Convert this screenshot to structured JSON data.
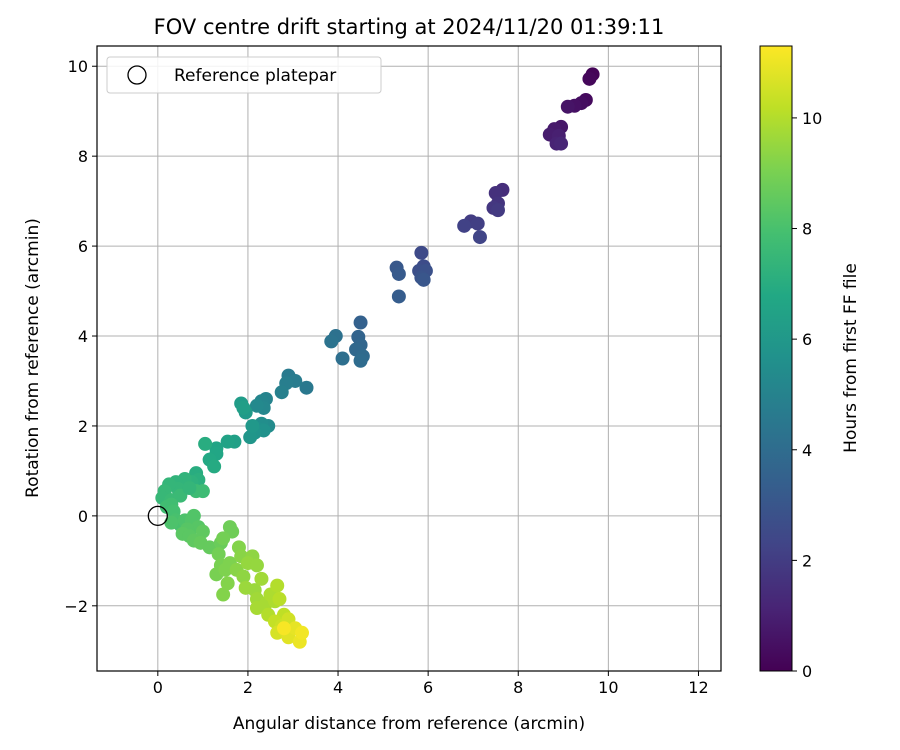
{
  "chart_data": {
    "type": "scatter",
    "title": "FOV centre drift starting at 2024/11/20 01:39:11",
    "xlabel": "Angular distance from reference (arcmin)",
    "ylabel": "Rotation from reference (arcmin)",
    "xlim": [
      -1.35,
      12.5
    ],
    "ylim": [
      -3.45,
      10.45
    ],
    "xticks": [
      0,
      2,
      4,
      6,
      8,
      10,
      12
    ],
    "yticks": [
      -2,
      0,
      2,
      4,
      6,
      8,
      10
    ],
    "grid": true,
    "colormap": "viridis",
    "colorbar": {
      "label": "Hours from first FF file",
      "range": [
        0,
        11.3
      ],
      "ticks": [
        0,
        2,
        4,
        6,
        8,
        10
      ]
    },
    "legend": {
      "position": "top-left",
      "entries": [
        "Reference platepar"
      ]
    },
    "reference_point": {
      "x": 0,
      "y": 0
    },
    "points": [
      [
        9.65,
        9.82,
        0.1
      ],
      [
        9.58,
        9.72,
        0.2
      ],
      [
        9.5,
        9.25,
        0.3
      ],
      [
        9.4,
        9.18,
        0.4
      ],
      [
        9.25,
        9.12,
        0.5
      ],
      [
        9.1,
        9.1,
        0.6
      ],
      [
        8.95,
        8.65,
        0.7
      ],
      [
        8.8,
        8.6,
        0.8
      ],
      [
        8.7,
        8.48,
        0.9
      ],
      [
        8.9,
        8.45,
        1.0
      ],
      [
        8.85,
        8.28,
        1.1
      ],
      [
        8.95,
        8.28,
        1.2
      ],
      [
        7.65,
        7.25,
        1.5
      ],
      [
        7.5,
        7.18,
        1.6
      ],
      [
        7.55,
        6.95,
        1.7
      ],
      [
        7.45,
        6.85,
        1.8
      ],
      [
        7.55,
        6.8,
        1.9
      ],
      [
        6.95,
        6.55,
        2.0
      ],
      [
        7.1,
        6.5,
        2.1
      ],
      [
        6.8,
        6.45,
        2.2
      ],
      [
        7.15,
        6.2,
        2.3
      ],
      [
        5.85,
        5.85,
        2.5
      ],
      [
        5.9,
        5.55,
        2.6
      ],
      [
        5.8,
        5.45,
        2.7
      ],
      [
        5.95,
        5.45,
        2.8
      ],
      [
        5.85,
        5.3,
        2.9
      ],
      [
        5.9,
        5.25,
        3.0
      ],
      [
        5.3,
        5.52,
        3.1
      ],
      [
        5.35,
        5.38,
        3.2
      ],
      [
        5.35,
        4.88,
        3.3
      ],
      [
        4.5,
        4.3,
        3.5
      ],
      [
        4.45,
        3.98,
        3.6
      ],
      [
        4.5,
        3.8,
        3.7
      ],
      [
        4.4,
        3.7,
        3.8
      ],
      [
        4.55,
        3.55,
        3.9
      ],
      [
        4.5,
        3.45,
        4.0
      ],
      [
        4.1,
        3.5,
        4.1
      ],
      [
        3.95,
        4.0,
        4.2
      ],
      [
        3.85,
        3.88,
        4.3
      ],
      [
        3.3,
        2.85,
        4.5
      ],
      [
        2.9,
        3.12,
        4.6
      ],
      [
        3.05,
        3.0,
        4.7
      ],
      [
        2.85,
        2.95,
        4.8
      ],
      [
        2.75,
        2.75,
        4.9
      ],
      [
        2.4,
        2.6,
        5.0
      ],
      [
        2.3,
        2.55,
        5.1
      ],
      [
        2.35,
        2.4,
        5.2
      ],
      [
        2.2,
        2.45,
        5.3
      ],
      [
        2.45,
        2.0,
        5.4
      ],
      [
        2.3,
        2.05,
        5.5
      ],
      [
        2.2,
        1.95,
        5.6
      ],
      [
        2.35,
        1.9,
        5.7
      ],
      [
        2.15,
        1.85,
        5.8
      ],
      [
        2.05,
        1.75,
        5.9
      ],
      [
        2.1,
        2.0,
        6.0
      ],
      [
        1.95,
        2.3,
        6.1
      ],
      [
        1.85,
        2.5,
        6.2
      ],
      [
        1.9,
        2.4,
        6.3
      ],
      [
        1.7,
        1.65,
        6.4
      ],
      [
        1.55,
        1.65,
        6.5
      ],
      [
        1.3,
        1.5,
        6.6
      ],
      [
        1.3,
        1.38,
        6.7
      ],
      [
        1.15,
        1.25,
        6.8
      ],
      [
        1.25,
        1.1,
        6.9
      ],
      [
        1.05,
        1.6,
        7.0
      ],
      [
        0.85,
        0.95,
        7.0
      ],
      [
        0.9,
        0.8,
        7.1
      ],
      [
        0.75,
        0.75,
        7.2
      ],
      [
        0.6,
        0.82,
        7.3
      ],
      [
        0.4,
        0.75,
        7.3
      ],
      [
        0.45,
        0.6,
        7.4
      ],
      [
        0.25,
        0.7,
        7.4
      ],
      [
        0.15,
        0.55,
        7.5
      ],
      [
        0.1,
        0.4,
        7.5
      ],
      [
        0.3,
        0.35,
        7.6
      ],
      [
        0.5,
        0.45,
        7.6
      ],
      [
        0.85,
        0.55,
        7.7
      ],
      [
        1.0,
        0.55,
        7.7
      ],
      [
        0.7,
        0.62,
        7.4
      ],
      [
        0.3,
        0.25,
        7.8
      ],
      [
        0.2,
        0.2,
        7.8
      ],
      [
        0.35,
        0.1,
        7.9
      ],
      [
        0.4,
        -0.1,
        8.0
      ],
      [
        0.5,
        -0.2,
        8.0
      ],
      [
        0.3,
        -0.15,
        8.1
      ],
      [
        0.6,
        -0.1,
        8.1
      ],
      [
        0.75,
        -0.1,
        8.2
      ],
      [
        0.8,
        0.0,
        8.2
      ],
      [
        0.9,
        -0.25,
        8.3
      ],
      [
        0.65,
        -0.3,
        8.3
      ],
      [
        0.55,
        -0.4,
        8.4
      ],
      [
        0.7,
        -0.45,
        8.4
      ],
      [
        0.8,
        -0.55,
        8.5
      ],
      [
        1.0,
        -0.35,
        8.5
      ],
      [
        0.95,
        -0.6,
        8.6
      ],
      [
        1.15,
        -0.7,
        8.6
      ],
      [
        1.4,
        -0.6,
        8.7
      ],
      [
        1.6,
        -0.25,
        8.8
      ],
      [
        1.65,
        -0.35,
        8.8
      ],
      [
        1.45,
        -0.5,
        8.9
      ],
      [
        1.35,
        -0.85,
        8.9
      ],
      [
        1.4,
        -1.1,
        9.0
      ],
      [
        1.3,
        -1.3,
        9.0
      ],
      [
        1.5,
        -1.2,
        9.1
      ],
      [
        1.6,
        -1.05,
        9.1
      ],
      [
        1.55,
        -1.5,
        9.2
      ],
      [
        1.45,
        -1.75,
        9.2
      ],
      [
        1.8,
        -0.7,
        9.2
      ],
      [
        1.85,
        -0.9,
        9.3
      ],
      [
        1.75,
        -1.2,
        9.3
      ],
      [
        1.9,
        -1.35,
        9.4
      ],
      [
        2.1,
        -0.9,
        9.4
      ],
      [
        2.0,
        -1.05,
        9.5
      ],
      [
        2.2,
        -1.1,
        9.5
      ],
      [
        1.95,
        -1.6,
        9.6
      ],
      [
        2.15,
        -1.65,
        9.6
      ],
      [
        2.3,
        -1.4,
        9.7
      ],
      [
        2.2,
        -1.85,
        9.7
      ],
      [
        2.4,
        -1.95,
        9.8
      ],
      [
        2.2,
        -2.05,
        9.8
      ],
      [
        2.5,
        -1.75,
        9.9
      ],
      [
        2.6,
        -1.9,
        9.9
      ],
      [
        2.45,
        -2.2,
        10.0
      ],
      [
        2.65,
        -1.55,
        10.0
      ],
      [
        2.7,
        -1.85,
        10.1
      ],
      [
        2.8,
        -2.2,
        10.2
      ],
      [
        2.6,
        -2.35,
        10.3
      ],
      [
        2.75,
        -2.45,
        10.4
      ],
      [
        2.9,
        -2.3,
        10.5
      ],
      [
        2.65,
        -2.6,
        10.6
      ],
      [
        2.85,
        -2.6,
        10.7
      ],
      [
        2.9,
        -2.7,
        10.8
      ],
      [
        3.05,
        -2.5,
        10.9
      ],
      [
        3.15,
        -2.8,
        11.0
      ],
      [
        3.2,
        -2.6,
        11.1
      ],
      [
        2.8,
        -2.5,
        11.2
      ]
    ]
  }
}
